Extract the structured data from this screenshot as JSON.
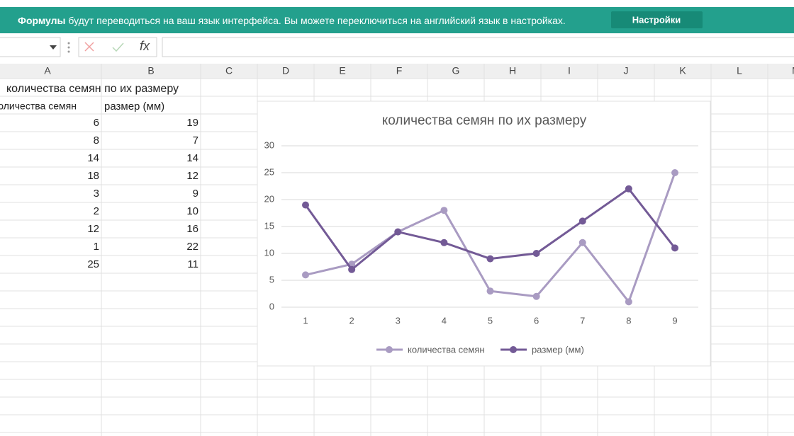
{
  "banner": {
    "bold": "Формулы",
    "text": "будут переводиться на ваш язык интерфейса. Вы можете переключиться на английский язык в настройках.",
    "button": "Настройки"
  },
  "formula_bar": {
    "fx": "fx"
  },
  "columns": [
    "A",
    "B",
    "C",
    "D",
    "E",
    "F",
    "G",
    "H",
    "I",
    "J",
    "K",
    "L",
    "M"
  ],
  "chart_data": {
    "type": "line",
    "title": "количества семян по их размеру",
    "categories": [
      "1",
      "2",
      "3",
      "4",
      "5",
      "6",
      "7",
      "8",
      "9"
    ],
    "series": [
      {
        "name": "количества семян",
        "color": "#a99bc2",
        "values": [
          6,
          8,
          14,
          18,
          3,
          2,
          12,
          1,
          25
        ]
      },
      {
        "name": "размер (мм)",
        "color": "#735a96",
        "values": [
          19,
          7,
          14,
          12,
          9,
          10,
          16,
          22,
          11
        ]
      }
    ],
    "ylim": [
      0,
      30
    ],
    "yticks": [
      0,
      5,
      10,
      15,
      20,
      25,
      30
    ],
    "grid": true,
    "legend": "bottom"
  }
}
